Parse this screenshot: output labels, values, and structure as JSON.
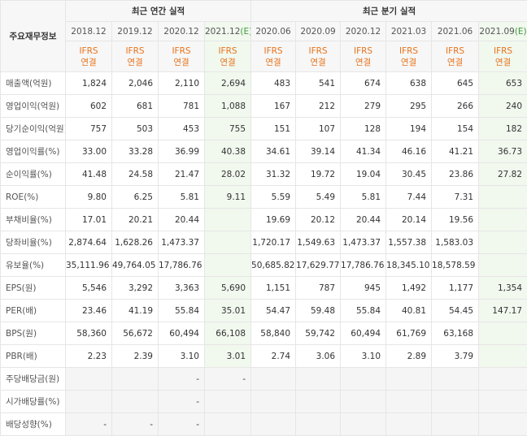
{
  "header": {
    "label": "주요재무정보",
    "groups": [
      "최근 연간 실적",
      "최근 분기 실적"
    ],
    "periods": [
      {
        "period": "2018.12"
      },
      {
        "period": "2019.12"
      },
      {
        "period": "2020.12"
      },
      {
        "period": "2021.12",
        "estimate": "(E)"
      },
      {
        "period": "2020.06"
      },
      {
        "period": "2020.09"
      },
      {
        "period": "2020.12"
      },
      {
        "period": "2021.03"
      },
      {
        "period": "2021.06"
      },
      {
        "period": "2021.09",
        "estimate": "(E)"
      }
    ],
    "standards": [
      {
        "standard": "IFRS",
        "scope": "연결"
      },
      {
        "standard": "IFRS",
        "scope": "연결"
      },
      {
        "standard": "IFRS",
        "scope": "연결"
      },
      {
        "standard": "IFRS",
        "scope": "연결"
      },
      {
        "standard": "IFRS",
        "scope": "연결"
      },
      {
        "standard": "IFRS",
        "scope": "연결"
      },
      {
        "standard": "IFRS",
        "scope": "연결"
      },
      {
        "standard": "IFRS",
        "scope": "연결"
      },
      {
        "standard": "IFRS",
        "scope": "연결"
      },
      {
        "standard": "IFRS",
        "scope": "연결"
      }
    ]
  },
  "rows": [
    {
      "label": "매출액(억원)",
      "cells": [
        "1,824",
        "2,046",
        "2,110",
        "2,694",
        "483",
        "541",
        "674",
        "638",
        "645",
        "653"
      ]
    },
    {
      "label": "영업이익(억원)",
      "cells": [
        "602",
        "681",
        "781",
        "1,088",
        "167",
        "212",
        "279",
        "295",
        "266",
        "240"
      ]
    },
    {
      "label": "당기순이익(억원)",
      "cells": [
        "757",
        "503",
        "453",
        "755",
        "151",
        "107",
        "128",
        "194",
        "154",
        "182"
      ]
    },
    {
      "label": "영업이익률(%)",
      "cells": [
        "33.00",
        "33.28",
        "36.99",
        "40.38",
        "34.61",
        "39.14",
        "41.34",
        "46.16",
        "41.21",
        "36.73"
      ]
    },
    {
      "label": "순이익률(%)",
      "cells": [
        "41.48",
        "24.58",
        "21.47",
        "28.02",
        "31.32",
        "19.72",
        "19.04",
        "30.45",
        "23.86",
        "27.82"
      ]
    },
    {
      "label": "ROE(%)",
      "cells": [
        "9.80",
        "6.25",
        "5.81",
        "9.11",
        "5.59",
        "5.49",
        "5.81",
        "7.44",
        "7.31",
        null
      ]
    },
    {
      "label": "부채비율(%)",
      "cells": [
        "17.01",
        "20.21",
        "20.44",
        null,
        "19.69",
        "20.12",
        "20.44",
        "20.14",
        "19.56",
        null
      ]
    },
    {
      "label": "당좌비율(%)",
      "cells": [
        "2,874.64",
        "1,628.26",
        "1,473.37",
        null,
        "1,720.17",
        "1,549.63",
        "1,473.37",
        "1,557.38",
        "1,583.03",
        null
      ]
    },
    {
      "label": "유보율(%)",
      "cells": [
        "35,111.96",
        "49,764.05",
        "17,786.76",
        null,
        "50,685.82",
        "17,629.77",
        "17,786.76",
        "18,345.10",
        "18,578.59",
        null
      ]
    },
    {
      "label": "EPS(원)",
      "cells": [
        "5,546",
        "3,292",
        "3,363",
        "5,690",
        "1,151",
        "787",
        "945",
        "1,492",
        "1,177",
        "1,354"
      ]
    },
    {
      "label": "PER(배)",
      "cells": [
        "23.46",
        "41.19",
        "55.84",
        "35.01",
        "54.47",
        "59.48",
        "55.84",
        "40.81",
        "54.45",
        "147.17"
      ]
    },
    {
      "label": "BPS(원)",
      "cells": [
        "58,360",
        "56,672",
        "60,494",
        "66,108",
        "58,840",
        "59,742",
        "60,494",
        "61,769",
        "63,168",
        null
      ]
    },
    {
      "label": "PBR(배)",
      "cells": [
        "2.23",
        "2.39",
        "3.10",
        "3.01",
        "2.74",
        "3.06",
        "3.10",
        "2.89",
        "3.79",
        null
      ]
    },
    {
      "label": "주당배당금(원)",
      "cells": [
        null,
        null,
        "-",
        "-",
        null,
        null,
        null,
        null,
        null,
        null
      ]
    },
    {
      "label": "시가배당률(%)",
      "cells": [
        null,
        null,
        "-",
        null,
        null,
        null,
        null,
        null,
        null,
        null
      ]
    },
    {
      "label": "배당성향(%)",
      "cells": [
        "-",
        "-",
        "-",
        null,
        null,
        null,
        null,
        null,
        null,
        null
      ]
    }
  ]
}
